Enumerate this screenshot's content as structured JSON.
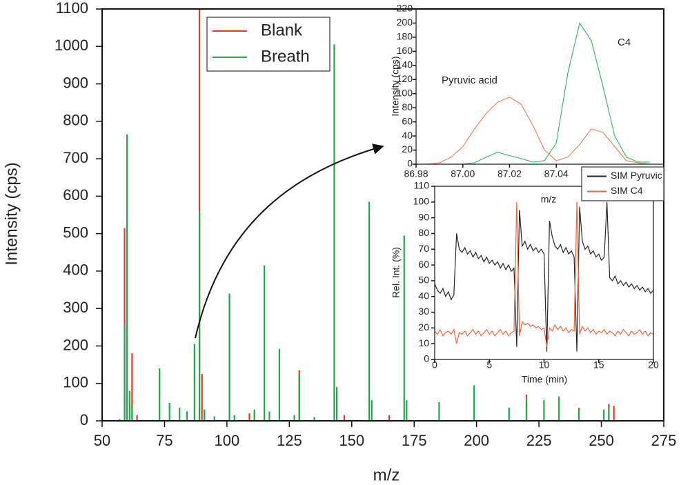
{
  "chart_data": [
    {
      "type": "stem",
      "xlabel": "m/z",
      "ylabel": "Intensity (cps)",
      "xlim": [
        50,
        275
      ],
      "ylim": [
        0,
        1100
      ],
      "xticks": [
        50,
        75,
        100,
        125,
        150,
        175,
        200,
        225,
        250,
        275
      ],
      "yticks": [
        0,
        100,
        200,
        300,
        400,
        500,
        600,
        700,
        800,
        900,
        1000,
        1100
      ],
      "legend": "upper left",
      "series": [
        {
          "name": "Blank",
          "color": "#e8371f",
          "x": [
            59,
            62,
            64,
            89,
            90,
            91,
            109,
            129,
            147,
            165,
            220,
            241,
            253,
            255
          ],
          "values": [
            515,
            180,
            15,
            1100,
            125,
            30,
            20,
            135,
            15,
            15,
            70,
            35,
            45,
            40
          ]
        },
        {
          "name": "Breath",
          "color": "#1fa64a",
          "x": [
            57,
            59,
            60,
            61,
            62,
            73,
            77,
            81,
            84,
            87,
            89,
            91,
            95,
            101,
            103,
            111,
            115,
            117,
            121,
            127,
            129,
            135,
            143,
            144,
            157,
            158,
            171,
            172,
            185,
            199,
            213,
            220,
            227,
            233,
            241,
            251,
            253
          ],
          "values": [
            5,
            255,
            765,
            80,
            40,
            140,
            48,
            35,
            25,
            205,
            560,
            30,
            12,
            340,
            15,
            30,
            415,
            25,
            192,
            15,
            125,
            10,
            1005,
            90,
            585,
            55,
            495,
            55,
            50,
            95,
            35,
            60,
            55,
            65,
            30,
            30,
            35
          ]
        }
      ]
    },
    {
      "type": "line",
      "xlabel": "m/z",
      "ylabel": "Intensity (cps)",
      "xlim": [
        86.98,
        87.086
      ],
      "ylim": [
        0,
        220
      ],
      "xticks": [
        86.98,
        {
          "value": 87,
          "label": "87.00"
        },
        87.02,
        87.04
      ],
      "yticks": [
        0,
        20,
        40,
        60,
        80,
        100,
        120,
        140,
        160,
        180,
        200,
        220
      ],
      "annotations": [
        "Pyruvic acid",
        "C4"
      ],
      "x": [
        86.98,
        86.985,
        86.99,
        86.995,
        87,
        87.005,
        87.01,
        87.015,
        87.02,
        87.025,
        87.03,
        87.035,
        87.04,
        87.045,
        87.05,
        87.055,
        87.06,
        87.065,
        87.07,
        87.075,
        87.08
      ],
      "series": [
        {
          "color": "#f4805c",
          "values": [
            0,
            0,
            2,
            10,
            25,
            50,
            72,
            88,
            95,
            85,
            55,
            20,
            5,
            10,
            28,
            50,
            45,
            25,
            5,
            2,
            0
          ]
        },
        {
          "color": "#3cb86a",
          "values": [
            0,
            0,
            0,
            0,
            0,
            2,
            10,
            17,
            12,
            8,
            3,
            5,
            30,
            130,
            200,
            175,
            110,
            40,
            10,
            3,
            3
          ]
        }
      ]
    },
    {
      "type": "line",
      "xlabel": "Time (min)",
      "ylabel": "Rel. Int. (%)",
      "xlim": [
        0,
        20
      ],
      "ylim": [
        0,
        110
      ],
      "xticks": [
        0,
        5,
        10,
        15,
        20
      ],
      "yticks": [
        0,
        10,
        20,
        30,
        40,
        50,
        60,
        70,
        80,
        90,
        100,
        110
      ],
      "legend": "upper right",
      "x": [
        0,
        0.25,
        0.5,
        0.75,
        1,
        1.25,
        1.5,
        1.75,
        2,
        2.25,
        2.5,
        2.75,
        3,
        3.25,
        3.5,
        3.75,
        4,
        4.25,
        4.5,
        4.75,
        5,
        5.25,
        5.5,
        5.75,
        6,
        6.25,
        6.5,
        6.75,
        7,
        7.25,
        7.5,
        7.75,
        8,
        8.25,
        8.5,
        8.75,
        9,
        9.25,
        9.5,
        9.75,
        10,
        10.25,
        10.5,
        10.75,
        11,
        11.25,
        11.5,
        11.75,
        12,
        12.25,
        12.5,
        12.75,
        13,
        13.25,
        13.5,
        13.75,
        14,
        14.25,
        14.5,
        14.75,
        15,
        15.25,
        15.5,
        15.75,
        16,
        16.25,
        16.5,
        16.75,
        17,
        17.25,
        17.5,
        17.75,
        18,
        18.25,
        18.5,
        18.75,
        19,
        19.25,
        19.5,
        19.75,
        20
      ],
      "series": [
        {
          "name": "SIM Pyruvic",
          "color": "#222222",
          "values": [
            48,
            44,
            42,
            45,
            40,
            43,
            38,
            41,
            80,
            70,
            68,
            71,
            67,
            69,
            65,
            68,
            64,
            66,
            62,
            65,
            61,
            63,
            60,
            62,
            58,
            61,
            57,
            60,
            56,
            58,
            8,
            95,
            72,
            75,
            70,
            73,
            69,
            71,
            68,
            70,
            67,
            5,
            88,
            78,
            72,
            70,
            73,
            68,
            71,
            67,
            69,
            65,
            5,
            97,
            75,
            70,
            72,
            67,
            69,
            65,
            67,
            63,
            65,
            100,
            52,
            50,
            53,
            48,
            50,
            47,
            49,
            46,
            48,
            45,
            47,
            44,
            46,
            43,
            45,
            42,
            44
          ]
        },
        {
          "name": "SIM C4",
          "color": "#f4603a",
          "values": [
            18,
            16,
            19,
            15,
            17,
            18,
            16,
            19,
            10,
            17,
            16,
            18,
            15,
            17,
            19,
            16,
            18,
            15,
            17,
            19,
            16,
            18,
            15,
            17,
            19,
            16,
            18,
            15,
            17,
            18,
            100,
            15,
            24,
            22,
            23,
            21,
            22,
            20,
            21,
            19,
            20,
            8,
            20,
            18,
            22,
            19,
            21,
            18,
            20,
            17,
            19,
            18,
            100,
            16,
            21,
            18,
            20,
            17,
            19,
            16,
            18,
            17,
            19,
            16,
            18,
            17,
            15,
            18,
            16,
            19,
            17,
            15,
            18,
            16,
            17,
            19,
            16,
            18,
            15,
            17,
            16
          ]
        }
      ]
    }
  ]
}
